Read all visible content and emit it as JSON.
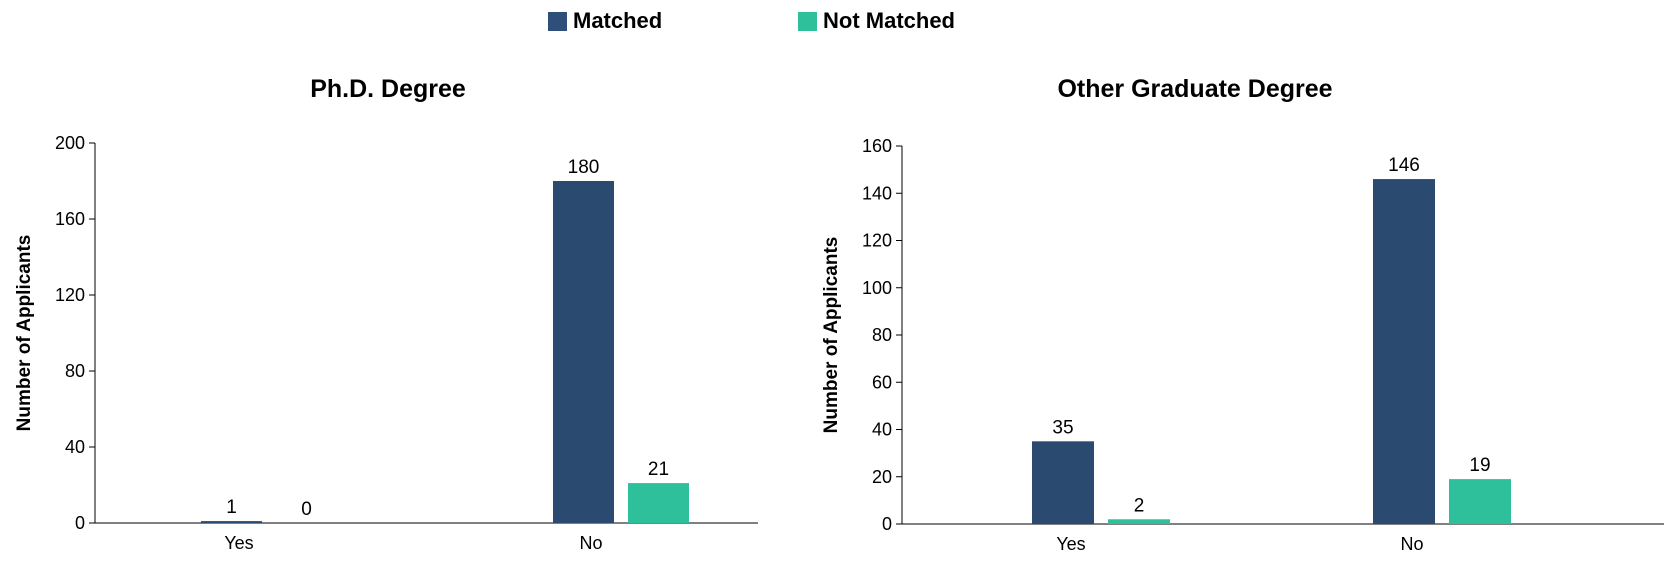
{
  "legend": {
    "items": [
      {
        "label": "Matched",
        "color": "#2e4f7a"
      },
      {
        "label": "Not Matched",
        "color": "#2ebf9b"
      }
    ]
  },
  "chart_data": [
    {
      "type": "bar",
      "title": "Ph.D. Degree",
      "ylabel": "Number of Applicants",
      "xlabel": "",
      "categories": [
        "Yes",
        "No"
      ],
      "ylim": [
        0,
        200
      ],
      "yticks": [
        0,
        40,
        80,
        120,
        160,
        200
      ],
      "series": [
        {
          "name": "Matched",
          "color": "#2a4a70",
          "values": [
            1,
            180
          ]
        },
        {
          "name": "Not Matched",
          "color": "#2ebf9b",
          "values": [
            0,
            21
          ]
        }
      ],
      "grid": false,
      "legend_position": "top"
    },
    {
      "type": "bar",
      "title": "Other Graduate Degree",
      "ylabel": "Number of Applicants",
      "xlabel": "",
      "categories": [
        "Yes",
        "No"
      ],
      "ylim": [
        0,
        160
      ],
      "yticks": [
        0,
        20,
        40,
        60,
        80,
        100,
        120,
        140,
        160
      ],
      "series": [
        {
          "name": "Matched",
          "color": "#2a4a70",
          "values": [
            35,
            146
          ]
        },
        {
          "name": "Not Matched",
          "color": "#2ebf9b",
          "values": [
            2,
            19
          ]
        }
      ],
      "grid": false,
      "legend_position": "top"
    }
  ]
}
